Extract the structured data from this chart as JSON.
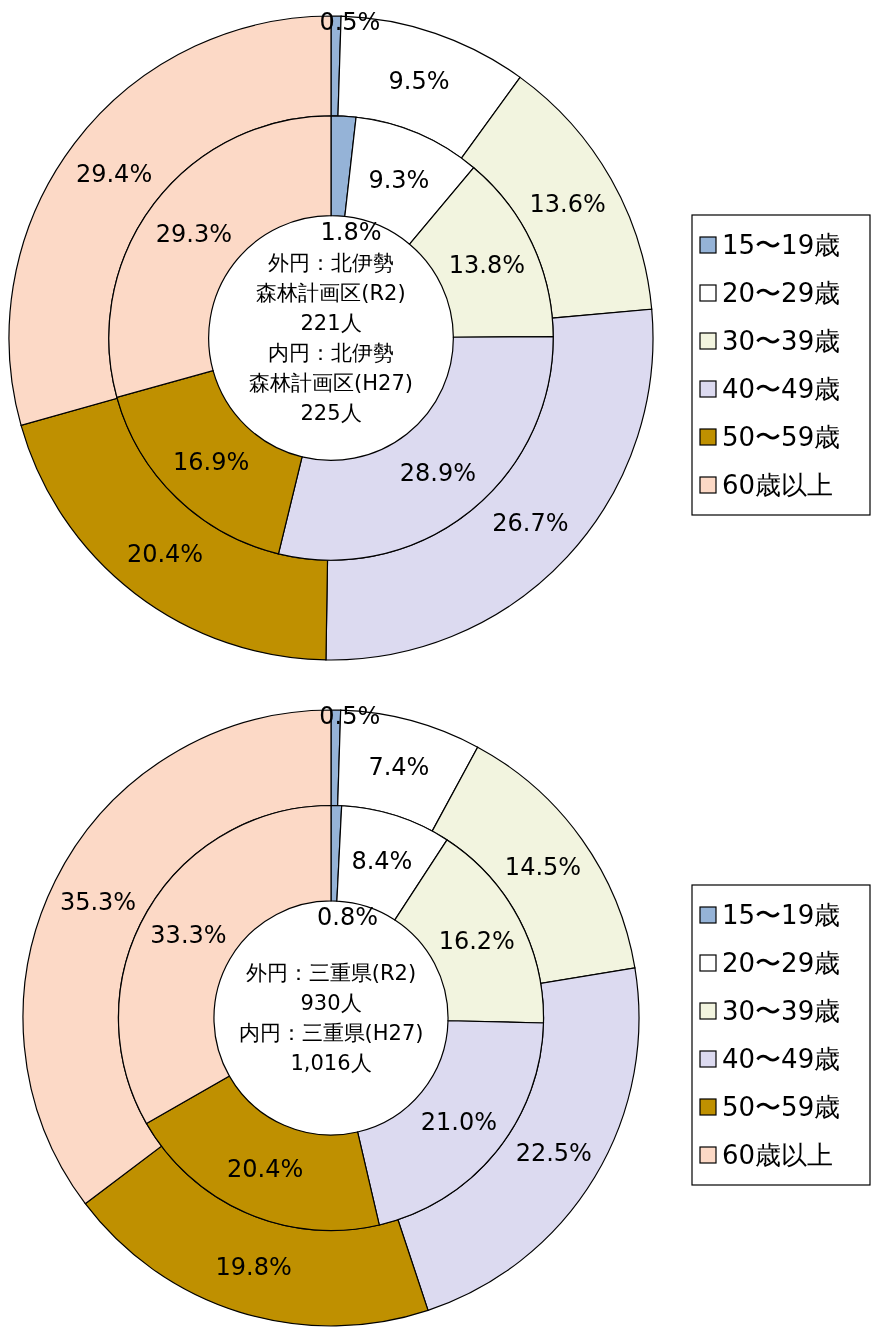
{
  "chart_data": [
    {
      "type": "donut",
      "categories": [
        "15〜19歳",
        "20〜29歳",
        "30〜39歳",
        "40〜49歳",
        "50〜59歳",
        "60歳以上"
      ],
      "colors": [
        "#95b3d7",
        "#ffffff",
        "#f2f4df",
        "#dcdaf0",
        "#bf9000",
        "#fcd9c6"
      ],
      "series": [
        {
          "values": [
            0.5,
            9.5,
            13.6,
            26.7,
            20.4,
            29.4
          ],
          "value_labels": [
            "0.5%",
            "9.5%",
            "13.6%",
            "26.7%",
            "20.4%",
            "29.4%"
          ]
        },
        {
          "values": [
            1.8,
            9.3,
            13.8,
            28.9,
            16.9,
            29.3
          ],
          "value_labels": [
            "1.8%",
            "9.3%",
            "13.8%",
            "28.9%",
            "16.9%",
            "29.3%"
          ]
        }
      ],
      "legend": "right",
      "annotations": [
        "外円：北伊勢",
        "森林計画区(R2)",
        "221人",
        "内円：北伊勢",
        "森林計画区(H27)",
        "225人"
      ]
    },
    {
      "type": "donut",
      "categories": [
        "15〜19歳",
        "20〜29歳",
        "30〜39歳",
        "40〜49歳",
        "50〜59歳",
        "60歳以上"
      ],
      "colors": [
        "#95b3d7",
        "#ffffff",
        "#f2f4df",
        "#dcdaf0",
        "#bf9000",
        "#fcd9c6"
      ],
      "series": [
        {
          "values": [
            0.5,
            7.4,
            14.5,
            22.5,
            19.8,
            35.3
          ],
          "value_labels": [
            "0.5%",
            "7.4%",
            "14.5%",
            "22.5%",
            "19.8%",
            "35.3%"
          ]
        },
        {
          "values": [
            0.8,
            8.4,
            16.2,
            21.0,
            20.4,
            33.3
          ],
          "value_labels": [
            "0.8%",
            "8.4%",
            "16.2%",
            "21.0%",
            "20.4%",
            "33.3%"
          ]
        }
      ],
      "legend": "right",
      "annotations": [
        "外円：三重県(R2)",
        "930人",
        "内円：三重県(H27)",
        "1,016人"
      ]
    }
  ]
}
